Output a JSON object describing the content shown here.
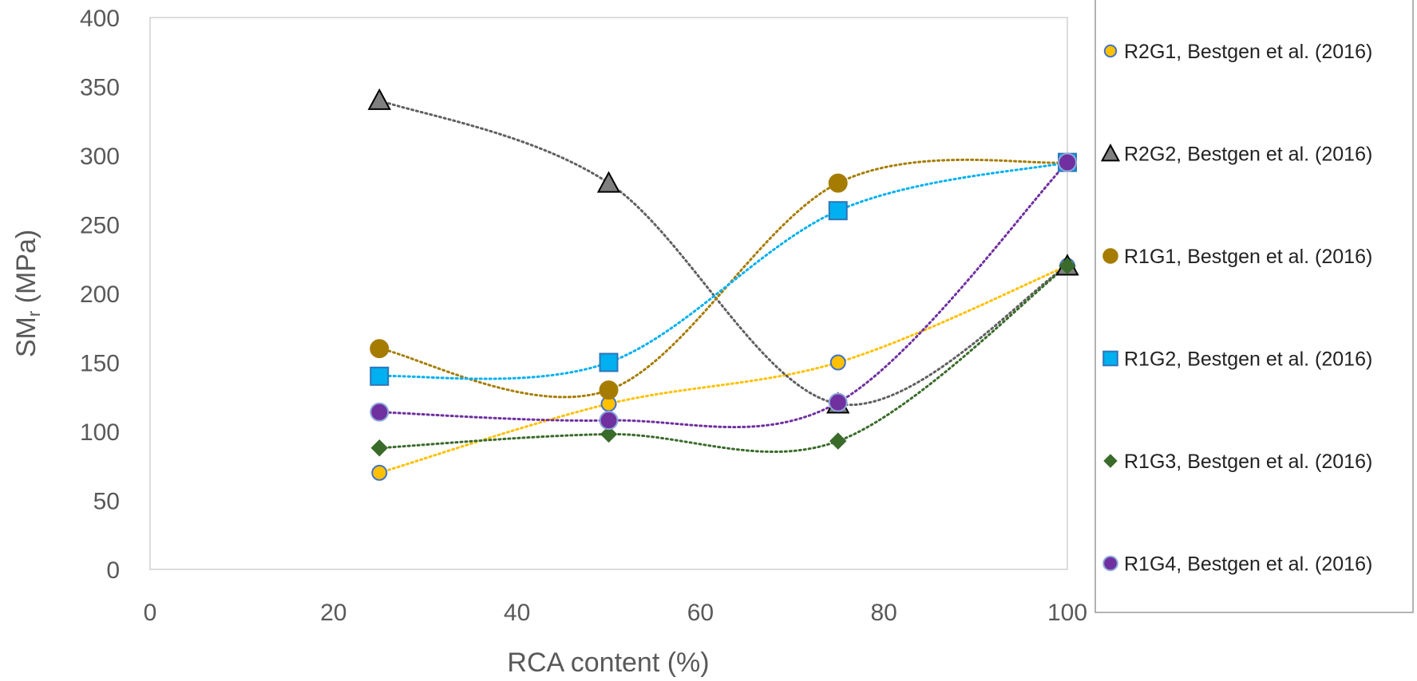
{
  "chart_data": {
    "type": "scatter",
    "xlabel": "RCA content (%)",
    "ylabel": {
      "main": "SM",
      "sub": "r",
      "unit": " (MPa)"
    },
    "xlim": [
      0,
      100
    ],
    "ylim": [
      0,
      400
    ],
    "xticks": [
      "0",
      "20",
      "40",
      "60",
      "80",
      "100"
    ],
    "yticks": [
      "0",
      "50",
      "100",
      "150",
      "200",
      "250",
      "300",
      "350",
      "400"
    ],
    "grid": false,
    "legend_position": "right",
    "trendline": "smooth dotted",
    "series": [
      {
        "name": "R2G1, Bestgen et al. (2016)",
        "marker": "circle-small",
        "color": "#FFC000",
        "edge": "#4472C4",
        "x": [
          25,
          50,
          75,
          100
        ],
        "y": [
          70,
          120,
          150,
          220
        ]
      },
      {
        "name": "R2G2, Bestgen et al. (2016)",
        "marker": "triangle",
        "color": "#7F7F7F",
        "edge": "#000000",
        "x": [
          25,
          50,
          75,
          100
        ],
        "y": [
          340,
          280,
          120,
          220
        ]
      },
      {
        "name": "R1G1, Bestgen et al. (2016)",
        "marker": "circle",
        "color": "#A67C00",
        "edge": "#A67C00",
        "x": [
          25,
          50,
          75,
          100
        ],
        "y": [
          160,
          130,
          280,
          295
        ]
      },
      {
        "name": "R1G2, Bestgen et al. (2016)",
        "marker": "square",
        "color": "#00B0F0",
        "edge": "#2F75B5",
        "x": [
          25,
          50,
          75,
          100
        ],
        "y": [
          140,
          150,
          260,
          295
        ]
      },
      {
        "name": "R1G3, Bestgen et al. (2016)",
        "marker": "diamond",
        "color": "#3A6B2A",
        "edge": "#3A6B2A",
        "x": [
          25,
          50,
          75,
          100
        ],
        "y": [
          88,
          98,
          93,
          220
        ]
      },
      {
        "name": "R1G4, Bestgen et al. (2016)",
        "marker": "circle",
        "color": "#7030A0",
        "edge": "#8EA9DB",
        "x": [
          25,
          50,
          75,
          100
        ],
        "y": [
          114,
          108,
          121,
          295
        ]
      }
    ]
  }
}
